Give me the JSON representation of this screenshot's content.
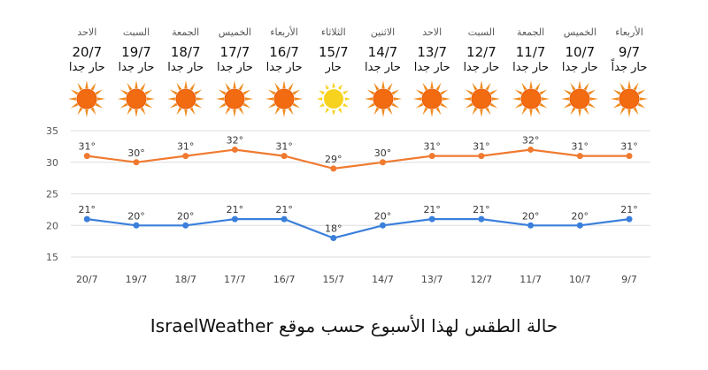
{
  "days": [
    {
      "name": "الأربعاء",
      "date": "9/7",
      "condition": "حار جداً",
      "icon": "sun-icon"
    },
    {
      "name": "الخميس",
      "date": "10/7",
      "condition": "حار جدا",
      "icon": "sun-icon"
    },
    {
      "name": "الجمعة",
      "date": "11/7",
      "condition": "حار جدا",
      "icon": "sun-icon"
    },
    {
      "name": "السبت",
      "date": "12/7",
      "condition": "حار جدا",
      "icon": "sun-icon"
    },
    {
      "name": "الاحد",
      "date": "13/7",
      "condition": "حار جدا",
      "icon": "sun-icon"
    },
    {
      "name": "الاثنين",
      "date": "14/7",
      "condition": "حار جدا",
      "icon": "sun-icon"
    },
    {
      "name": "الثلاثاء",
      "date": "15/7",
      "condition": "حار",
      "icon": "sun-mild-icon"
    },
    {
      "name": "الأربعاء",
      "date": "16/7",
      "condition": "حار جدا",
      "icon": "sun-icon"
    },
    {
      "name": "الخميس",
      "date": "17/7",
      "condition": "حار جدا",
      "icon": "sun-icon"
    },
    {
      "name": "الجمعة",
      "date": "18/7",
      "condition": "حار جدا",
      "icon": "sun-icon"
    },
    {
      "name": "السبت",
      "date": "19/7",
      "condition": "حار جدا",
      "icon": "sun-icon"
    },
    {
      "name": "الاحد",
      "date": "20/7",
      "condition": "حار جدا",
      "icon": "sun-icon"
    }
  ],
  "colors": {
    "high": "#f07a30",
    "low": "#3a7fdb",
    "grid": "#dddddd",
    "sun": "#f08a1e",
    "sun_center": "#f26b10",
    "sun_mild": "#f7d21e"
  },
  "chart_data": {
    "type": "line",
    "x": [
      "9/7",
      "10/7",
      "11/7",
      "12/7",
      "13/7",
      "14/7",
      "15/7",
      "16/7",
      "17/7",
      "18/7",
      "19/7",
      "20/7"
    ],
    "series": [
      {
        "values": [
          31,
          31,
          32,
          31,
          31,
          30,
          29,
          31,
          32,
          31,
          30,
          31
        ],
        "labels": [
          "31°",
          "31°",
          "32°",
          "31°",
          "31°",
          "30°",
          "29°",
          "31°",
          "32°",
          "31°",
          "30°",
          "31°"
        ]
      },
      {
        "values": [
          21,
          20,
          20,
          21,
          21,
          20,
          18,
          21,
          21,
          20,
          20,
          21
        ],
        "labels": [
          "21°",
          "20°",
          "20°",
          "21°",
          "21°",
          "20°",
          "18°",
          "21°",
          "21°",
          "20°",
          "20°",
          "21°"
        ]
      }
    ],
    "ylim": [
      15,
      35
    ],
    "yticks": [
      "15",
      "20",
      "25",
      "30",
      "35"
    ],
    "x_direction": "right-to-left",
    "grid": true
  },
  "caption": "حالة الطقس لهذا الأسبوع حسب موقع IsraelWeather"
}
